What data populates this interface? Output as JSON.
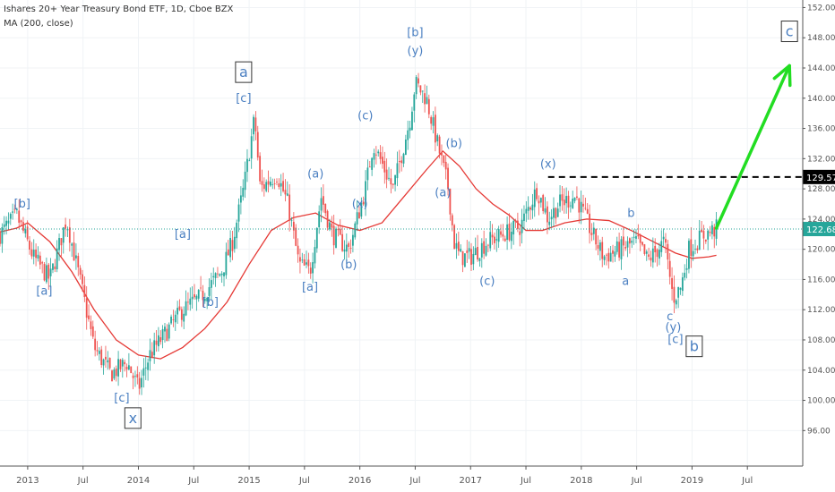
{
  "header": {
    "title": "Ishares 20+ Year Treasury Bond ETF, 1D, Cboe BZX",
    "indicator": "MA (200, close)"
  },
  "colors": {
    "up": "#26a69a",
    "down": "#ef5350",
    "ma": "#e53935",
    "wave_label": "#4a7fc1",
    "projection": "#22dd22",
    "resistance": "#000000",
    "current_price_line": "#26a69a"
  },
  "chart_data": {
    "type": "candlestick",
    "x_axis": {
      "ticks": [
        "2013",
        "Jul",
        "2014",
        "Jul",
        "2015",
        "Jul",
        "2016",
        "Jul",
        "2017",
        "Jul",
        "2018",
        "Jul",
        "2019",
        "Jul"
      ],
      "range": [
        2012.75,
        2020.0
      ]
    },
    "y_axis": {
      "ticks": [
        96,
        100,
        104,
        108,
        112,
        116,
        120,
        124,
        128,
        132,
        136,
        140,
        144,
        148,
        152
      ],
      "range": [
        91.3,
        153.0
      ],
      "position": "right"
    },
    "price_path": [
      [
        2012.75,
        122
      ],
      [
        2012.9,
        124.5
      ],
      [
        2013.05,
        119
      ],
      [
        2013.2,
        116
      ],
      [
        2013.35,
        124
      ],
      [
        2013.5,
        114
      ],
      [
        2013.6,
        107
      ],
      [
        2013.75,
        103.5
      ],
      [
        2013.9,
        105
      ],
      [
        2014.0,
        101.5
      ],
      [
        2014.1,
        106
      ],
      [
        2014.25,
        109
      ],
      [
        2014.4,
        112
      ],
      [
        2014.55,
        113.5
      ],
      [
        2014.75,
        117
      ],
      [
        2014.85,
        121
      ],
      [
        2014.95,
        128
      ],
      [
        2015.05,
        137.5
      ],
      [
        2015.1,
        128
      ],
      [
        2015.25,
        130
      ],
      [
        2015.35,
        126
      ],
      [
        2015.45,
        118
      ],
      [
        2015.55,
        117
      ],
      [
        2015.65,
        127
      ],
      [
        2015.75,
        122
      ],
      [
        2015.9,
        120
      ],
      [
        2016.05,
        128
      ],
      [
        2016.12,
        134
      ],
      [
        2016.3,
        128
      ],
      [
        2016.45,
        137
      ],
      [
        2016.5,
        142
      ],
      [
        2016.6,
        140
      ],
      [
        2016.7,
        134
      ],
      [
        2016.8,
        128
      ],
      [
        2016.85,
        121
      ],
      [
        2016.9,
        119
      ],
      [
        2017.0,
        119
      ],
      [
        2017.15,
        121
      ],
      [
        2017.3,
        122
      ],
      [
        2017.45,
        123
      ],
      [
        2017.6,
        128
      ],
      [
        2017.7,
        124
      ],
      [
        2017.8,
        126
      ],
      [
        2017.95,
        127
      ],
      [
        2018.1,
        122
      ],
      [
        2018.2,
        119
      ],
      [
        2018.35,
        120
      ],
      [
        2018.5,
        121
      ],
      [
        2018.6,
        118.5
      ],
      [
        2018.75,
        121
      ],
      [
        2018.83,
        113.5
      ],
      [
        2018.9,
        115
      ],
      [
        2018.97,
        120
      ],
      [
        2019.1,
        121.8
      ],
      [
        2019.22,
        122.7
      ]
    ],
    "ma200_path": [
      [
        2012.75,
        122.3
      ],
      [
        2012.9,
        122.8
      ],
      [
        2013.0,
        123.5
      ],
      [
        2013.2,
        121
      ],
      [
        2013.4,
        117
      ],
      [
        2013.6,
        112
      ],
      [
        2013.8,
        108
      ],
      [
        2014.0,
        106
      ],
      [
        2014.2,
        105.5
      ],
      [
        2014.4,
        107
      ],
      [
        2014.6,
        109.5
      ],
      [
        2014.8,
        113
      ],
      [
        2015.0,
        118
      ],
      [
        2015.2,
        122.5
      ],
      [
        2015.4,
        124.2
      ],
      [
        2015.6,
        124.8
      ],
      [
        2015.8,
        123.2
      ],
      [
        2016.0,
        122.5
      ],
      [
        2016.2,
        123.5
      ],
      [
        2016.4,
        127
      ],
      [
        2016.6,
        130.5
      ],
      [
        2016.75,
        133
      ],
      [
        2016.9,
        131
      ],
      [
        2017.05,
        128
      ],
      [
        2017.2,
        126
      ],
      [
        2017.35,
        124.5
      ],
      [
        2017.5,
        122.5
      ],
      [
        2017.65,
        122.5
      ],
      [
        2017.85,
        123.5
      ],
      [
        2018.05,
        124
      ],
      [
        2018.25,
        123.8
      ],
      [
        2018.45,
        122.5
      ],
      [
        2018.65,
        121
      ],
      [
        2018.85,
        119.5
      ],
      [
        2019.0,
        118.8
      ],
      [
        2019.15,
        119
      ],
      [
        2019.22,
        119.2
      ]
    ],
    "horizontal_lines": [
      {
        "price": 129.57,
        "style": "dashed",
        "label": "129.57",
        "from_x": 2017.7
      },
      {
        "price": 122.68,
        "style": "dotted",
        "label": "122.68",
        "from_x": 2012.75
      }
    ],
    "projection_arrow": {
      "from": [
        2019.22,
        122.8
      ],
      "to": [
        2019.88,
        144.3
      ]
    },
    "wave_labels": [
      {
        "text": "[b]",
        "x": 2012.95,
        "y": 125.5
      },
      {
        "text": "[a]",
        "x": 2013.15,
        "y": 114
      },
      {
        "text": "[c]",
        "x": 2013.85,
        "y": 99.8
      },
      {
        "text": "x",
        "x": 2013.95,
        "y": 97,
        "boxed": true
      },
      {
        "text": "[a]",
        "x": 2014.4,
        "y": 121.5
      },
      {
        "text": "[b]",
        "x": 2014.65,
        "y": 112.5
      },
      {
        "text": "[c]",
        "x": 2014.95,
        "y": 139.5
      },
      {
        "text": "a",
        "x": 2014.95,
        "y": 142.8,
        "boxed": true
      },
      {
        "text": "(a)",
        "x": 2015.6,
        "y": 129.5
      },
      {
        "text": "[a]",
        "x": 2015.55,
        "y": 114.5
      },
      {
        "text": "(b)",
        "x": 2015.9,
        "y": 117.5
      },
      {
        "text": "(x)",
        "x": 2016.0,
        "y": 125.5
      },
      {
        "text": "(c)",
        "x": 2016.05,
        "y": 137.2
      },
      {
        "text": "[b]",
        "x": 2016.5,
        "y": 148.2
      },
      {
        "text": "(y)",
        "x": 2016.5,
        "y": 145.8
      },
      {
        "text": "(a)",
        "x": 2016.75,
        "y": 127
      },
      {
        "text": "(b)",
        "x": 2016.85,
        "y": 133.5
      },
      {
        "text": "(c)",
        "x": 2017.15,
        "y": 115.3
      },
      {
        "text": "(x)",
        "x": 2017.7,
        "y": 130.8
      },
      {
        "text": "b",
        "x": 2018.45,
        "y": 124.3
      },
      {
        "text": "a",
        "x": 2018.4,
        "y": 115.3
      },
      {
        "text": "c",
        "x": 2018.8,
        "y": 110.6
      },
      {
        "text": "(y)",
        "x": 2018.83,
        "y": 109.2
      },
      {
        "text": "[c]",
        "x": 2018.85,
        "y": 107.6
      },
      {
        "text": "b",
        "x": 2019.02,
        "y": 106.5,
        "boxed": true
      },
      {
        "text": "c",
        "x": 2019.88,
        "y": 148.2,
        "boxed": true
      }
    ]
  }
}
